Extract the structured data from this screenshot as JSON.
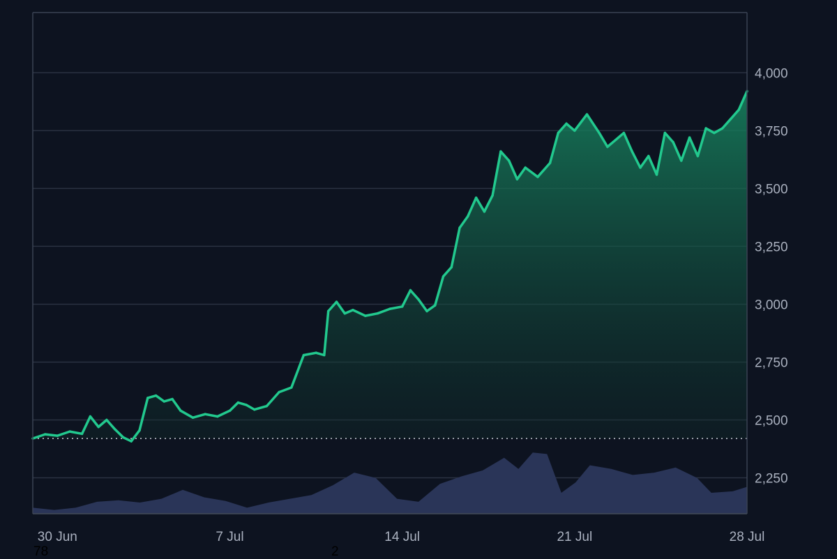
{
  "chart_data": {
    "type": "area",
    "title": "",
    "xlabel": "",
    "ylabel": "",
    "x_range": [
      "2025-06-29",
      "2025-07-28"
    ],
    "ylim": [
      2095,
      4260
    ],
    "y_ticks": [
      2250,
      2500,
      2750,
      3000,
      3250,
      3500,
      3750,
      4000
    ],
    "y_tick_labels": [
      "2,250",
      "2,500",
      "2,750",
      "3,000",
      "3,250",
      "3,500",
      "3,750",
      "4,000"
    ],
    "x_ticks": [
      "2025-06-30",
      "2025-07-07",
      "2025-07-14",
      "2025-07-21",
      "2025-07-28"
    ],
    "x_tick_labels": [
      "30 Jun",
      "7 Jul",
      "14 Jul",
      "21 Jul",
      "28 Jul"
    ],
    "baseline": 2420,
    "grid": true,
    "series": [
      {
        "kind": "price-line",
        "color_up": "#22c98e",
        "color_down": "#e8414b",
        "points": [
          [
            "2025-06-29",
            2420
          ],
          [
            "2025-06-29T12:00",
            2438
          ],
          [
            "2025-06-30",
            2432
          ],
          [
            "2025-06-30T12:00",
            2450
          ],
          [
            "2025-07-01",
            2440
          ],
          [
            "2025-07-01T08:00",
            2515
          ],
          [
            "2025-07-01T16:00",
            2470
          ],
          [
            "2025-07-02",
            2500
          ],
          [
            "2025-07-02T08:00",
            2460
          ],
          [
            "2025-07-02T16:00",
            2425
          ],
          [
            "2025-07-03",
            2408
          ],
          [
            "2025-07-03T08:00",
            2455
          ],
          [
            "2025-07-03T16:00",
            2595
          ],
          [
            "2025-07-04",
            2605
          ],
          [
            "2025-07-04T08:00",
            2580
          ],
          [
            "2025-07-04T16:00",
            2590
          ],
          [
            "2025-07-05",
            2540
          ],
          [
            "2025-07-05T12:00",
            2510
          ],
          [
            "2025-07-06",
            2525
          ],
          [
            "2025-07-06T12:00",
            2515
          ],
          [
            "2025-07-07",
            2540
          ],
          [
            "2025-07-07T08:00",
            2575
          ],
          [
            "2025-07-07T16:00",
            2565
          ],
          [
            "2025-07-08",
            2545
          ],
          [
            "2025-07-08T12:00",
            2560
          ],
          [
            "2025-07-09",
            2620
          ],
          [
            "2025-07-09T12:00",
            2640
          ],
          [
            "2025-07-10",
            2780
          ],
          [
            "2025-07-10T12:00",
            2790
          ],
          [
            "2025-07-10T20:00",
            2780
          ],
          [
            "2025-07-11",
            2970
          ],
          [
            "2025-07-11T08:00",
            3010
          ],
          [
            "2025-07-11T16:00",
            2960
          ],
          [
            "2025-07-12",
            2975
          ],
          [
            "2025-07-12T12:00",
            2950
          ],
          [
            "2025-07-13",
            2960
          ],
          [
            "2025-07-13T12:00",
            2980
          ],
          [
            "2025-07-14",
            2990
          ],
          [
            "2025-07-14T08:00",
            3060
          ],
          [
            "2025-07-14T16:00",
            3020
          ],
          [
            "2025-07-15",
            2970
          ],
          [
            "2025-07-15T08:00",
            2995
          ],
          [
            "2025-07-15T16:00",
            3120
          ],
          [
            "2025-07-16",
            3160
          ],
          [
            "2025-07-16T08:00",
            3330
          ],
          [
            "2025-07-16T16:00",
            3380
          ],
          [
            "2025-07-17",
            3460
          ],
          [
            "2025-07-17T08:00",
            3400
          ],
          [
            "2025-07-17T16:00",
            3470
          ],
          [
            "2025-07-18",
            3660
          ],
          [
            "2025-07-18T08:00",
            3620
          ],
          [
            "2025-07-18T16:00",
            3540
          ],
          [
            "2025-07-19",
            3590
          ],
          [
            "2025-07-19T12:00",
            3550
          ],
          [
            "2025-07-20",
            3610
          ],
          [
            "2025-07-20T08:00",
            3740
          ],
          [
            "2025-07-20T16:00",
            3780
          ],
          [
            "2025-07-21",
            3750
          ],
          [
            "2025-07-21T12:00",
            3820
          ],
          [
            "2025-07-22",
            3740
          ],
          [
            "2025-07-22T08:00",
            3680
          ],
          [
            "2025-07-22T16:00",
            3710
          ],
          [
            "2025-07-23",
            3740
          ],
          [
            "2025-07-23T08:00",
            3660
          ],
          [
            "2025-07-23T16:00",
            3590
          ],
          [
            "2025-07-24",
            3640
          ],
          [
            "2025-07-24T08:00",
            3560
          ],
          [
            "2025-07-24T16:00",
            3740
          ],
          [
            "2025-07-25",
            3700
          ],
          [
            "2025-07-25T08:00",
            3620
          ],
          [
            "2025-07-25T16:00",
            3720
          ],
          [
            "2025-07-26",
            3640
          ],
          [
            "2025-07-26T08:00",
            3760
          ],
          [
            "2025-07-26T16:00",
            3740
          ],
          [
            "2025-07-27",
            3760
          ],
          [
            "2025-07-27T08:00",
            3800
          ],
          [
            "2025-07-27T16:00",
            3840
          ],
          [
            "2025-07-28",
            3920
          ]
        ]
      },
      {
        "kind": "volume",
        "color": "#2a3558",
        "relative_levels": [
          [
            0.0,
            0.08
          ],
          [
            0.03,
            0.05
          ],
          [
            0.06,
            0.08
          ],
          [
            0.09,
            0.16
          ],
          [
            0.12,
            0.18
          ],
          [
            0.15,
            0.15
          ],
          [
            0.18,
            0.2
          ],
          [
            0.21,
            0.32
          ],
          [
            0.24,
            0.22
          ],
          [
            0.27,
            0.17
          ],
          [
            0.3,
            0.08
          ],
          [
            0.33,
            0.15
          ],
          [
            0.36,
            0.2
          ],
          [
            0.39,
            0.25
          ],
          [
            0.42,
            0.38
          ],
          [
            0.45,
            0.55
          ],
          [
            0.48,
            0.48
          ],
          [
            0.51,
            0.2
          ],
          [
            0.54,
            0.16
          ],
          [
            0.57,
            0.4
          ],
          [
            0.6,
            0.5
          ],
          [
            0.63,
            0.58
          ],
          [
            0.66,
            0.75
          ],
          [
            0.68,
            0.6
          ],
          [
            0.7,
            0.82
          ],
          [
            0.72,
            0.8
          ],
          [
            0.74,
            0.28
          ],
          [
            0.76,
            0.42
          ],
          [
            0.78,
            0.65
          ],
          [
            0.81,
            0.6
          ],
          [
            0.84,
            0.52
          ],
          [
            0.87,
            0.55
          ],
          [
            0.9,
            0.62
          ],
          [
            0.93,
            0.48
          ],
          [
            0.95,
            0.28
          ],
          [
            0.98,
            0.3
          ],
          [
            1.0,
            0.36
          ]
        ]
      }
    ]
  },
  "stray_labels": [
    "78",
    "2"
  ]
}
